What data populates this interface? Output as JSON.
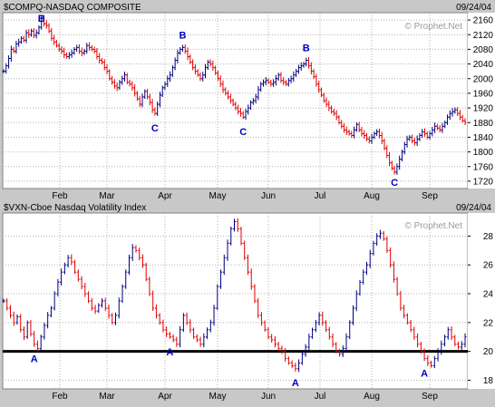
{
  "chart_data": [
    {
      "type": "bar",
      "style": "ohlc",
      "symbol": "$COMPQ",
      "title": "$COMPQ-NASDAQ COMPOSITE",
      "date": "09/24/04",
      "watermark": "© Prophet.Net",
      "ylim": [
        1700,
        2180
      ],
      "yticks": [
        1720,
        1760,
        1800,
        1840,
        1880,
        1920,
        1960,
        2000,
        2040,
        2080,
        2120,
        2160
      ],
      "x_labels": [
        "Feb",
        "Mar",
        "Apr",
        "May",
        "Jun",
        "Jul",
        "Aug",
        "Sep"
      ],
      "colors": {
        "up": "#000080",
        "down": "#e00000",
        "annotation": "#0000c0",
        "background": "#ffffff",
        "grid": "#b0b0b0"
      },
      "close": [
        2020,
        2035,
        2055,
        2080,
        2075,
        2095,
        2100,
        2110,
        2105,
        2125,
        2120,
        2130,
        2118,
        2125,
        2140,
        2165,
        2150,
        2145,
        2130,
        2110,
        2100,
        2090,
        2080,
        2075,
        2065,
        2060,
        2065,
        2070,
        2080,
        2085,
        2075,
        2070,
        2075,
        2090,
        2085,
        2080,
        2075,
        2060,
        2050,
        2045,
        2030,
        2020,
        2000,
        1990,
        1980,
        1975,
        1990,
        2000,
        2010,
        1990,
        1985,
        1975,
        1960,
        1945,
        1930,
        1950,
        1965,
        1950,
        1935,
        1915,
        1905,
        1930,
        1955,
        1975,
        1985,
        2000,
        2010,
        2030,
        2050,
        2070,
        2080,
        2085,
        2075,
        2060,
        2045,
        2030,
        2020,
        2010,
        2000,
        2010,
        2030,
        2045,
        2040,
        2030,
        2015,
        2000,
        1985,
        1970,
        1960,
        1950,
        1940,
        1930,
        1920,
        1910,
        1905,
        1895,
        1910,
        1920,
        1935,
        1940,
        1950,
        1970,
        1985,
        1990,
        1995,
        1990,
        1985,
        1990,
        2000,
        2010,
        1995,
        1990,
        1985,
        1995,
        2000,
        2010,
        2020,
        2030,
        2035,
        2040,
        2050,
        2035,
        2020,
        2005,
        1985,
        1970,
        1955,
        1940,
        1930,
        1920,
        1910,
        1905,
        1895,
        1880,
        1870,
        1860,
        1855,
        1850,
        1845,
        1860,
        1875,
        1860,
        1850,
        1845,
        1835,
        1830,
        1840,
        1850,
        1855,
        1845,
        1830,
        1810,
        1790,
        1770,
        1755,
        1745,
        1760,
        1780,
        1800,
        1820,
        1835,
        1840,
        1830,
        1825,
        1835,
        1845,
        1855,
        1850,
        1840,
        1850,
        1860,
        1870,
        1865,
        1860,
        1870,
        1880,
        1895,
        1905,
        1910,
        1915,
        1905,
        1895,
        1885,
        1880
      ],
      "annotations": [
        {
          "label": "B",
          "index": 15,
          "pos": "above"
        },
        {
          "label": "C",
          "index": 60,
          "pos": "below"
        },
        {
          "label": "B",
          "index": 71,
          "pos": "above"
        },
        {
          "label": "C",
          "index": 95,
          "pos": "below"
        },
        {
          "label": "B",
          "index": 120,
          "pos": "above"
        },
        {
          "label": "C",
          "index": 155,
          "pos": "below"
        }
      ]
    },
    {
      "type": "bar",
      "style": "ohlc",
      "symbol": "$VXN",
      "title": "$VXN-Cboe Nasdaq Volatility Index",
      "date": "09/24/04",
      "watermark": "© Prophet.Net",
      "ylim": [
        17.4,
        29.6
      ],
      "yticks": [
        18,
        20,
        22,
        24,
        26,
        28
      ],
      "reference_line": 20,
      "x_labels": [
        "Feb",
        "Mar",
        "Apr",
        "May",
        "Jun",
        "Jul",
        "Aug",
        "Sep"
      ],
      "colors": {
        "up": "#000080",
        "down": "#e00000",
        "annotation": "#0000c0",
        "background": "#ffffff",
        "grid": "#b0b0b0",
        "reference": "#000000"
      },
      "close": [
        23.5,
        23.0,
        22.5,
        22.0,
        22.4,
        21.5,
        21.0,
        22.0,
        21.2,
        20.5,
        20.2,
        21.0,
        21.8,
        22.5,
        23.0,
        24.0,
        24.8,
        25.5,
        26.0,
        26.5,
        26.2,
        25.5,
        25.0,
        24.5,
        24.0,
        23.5,
        23.0,
        22.8,
        23.2,
        23.5,
        23.0,
        22.5,
        22.0,
        22.5,
        23.5,
        24.5,
        25.5,
        26.5,
        27.2,
        27.0,
        26.5,
        26.0,
        25.0,
        24.0,
        23.0,
        22.5,
        22.0,
        21.5,
        21.2,
        21.0,
        20.8,
        20.5,
        21.5,
        22.5,
        22.0,
        21.5,
        21.0,
        20.8,
        20.5,
        21.0,
        21.5,
        22.0,
        23.0,
        24.5,
        25.5,
        26.5,
        27.5,
        28.5,
        29.0,
        28.5,
        27.5,
        26.5,
        25.5,
        24.5,
        23.5,
        22.5,
        22.0,
        21.5,
        21.0,
        20.8,
        20.5,
        20.2,
        20.0,
        19.5,
        19.2,
        19.0,
        18.8,
        19.2,
        19.8,
        20.3,
        21.0,
        21.5,
        22.0,
        22.5,
        22.0,
        21.5,
        21.0,
        20.5,
        20.0,
        19.8,
        20.2,
        21.0,
        22.0,
        23.0,
        24.0,
        24.8,
        25.5,
        26.0,
        26.8,
        27.5,
        28.0,
        28.2,
        27.8,
        27.0,
        26.0,
        25.0,
        24.0,
        23.0,
        22.5,
        22.0,
        21.5,
        21.0,
        20.5,
        20.0,
        19.5,
        19.2,
        19.0,
        19.5,
        20.0,
        20.5,
        21.0,
        21.5,
        21.0,
        20.5,
        20.3,
        20.5,
        21.0
      ],
      "annotations": [
        {
          "label": "A",
          "index": 9,
          "pos": "below"
        },
        {
          "label": "A",
          "index": 49,
          "pos": "below"
        },
        {
          "label": "A",
          "index": 86,
          "pos": "below"
        },
        {
          "label": "A",
          "index": 124,
          "pos": "below"
        }
      ]
    }
  ]
}
